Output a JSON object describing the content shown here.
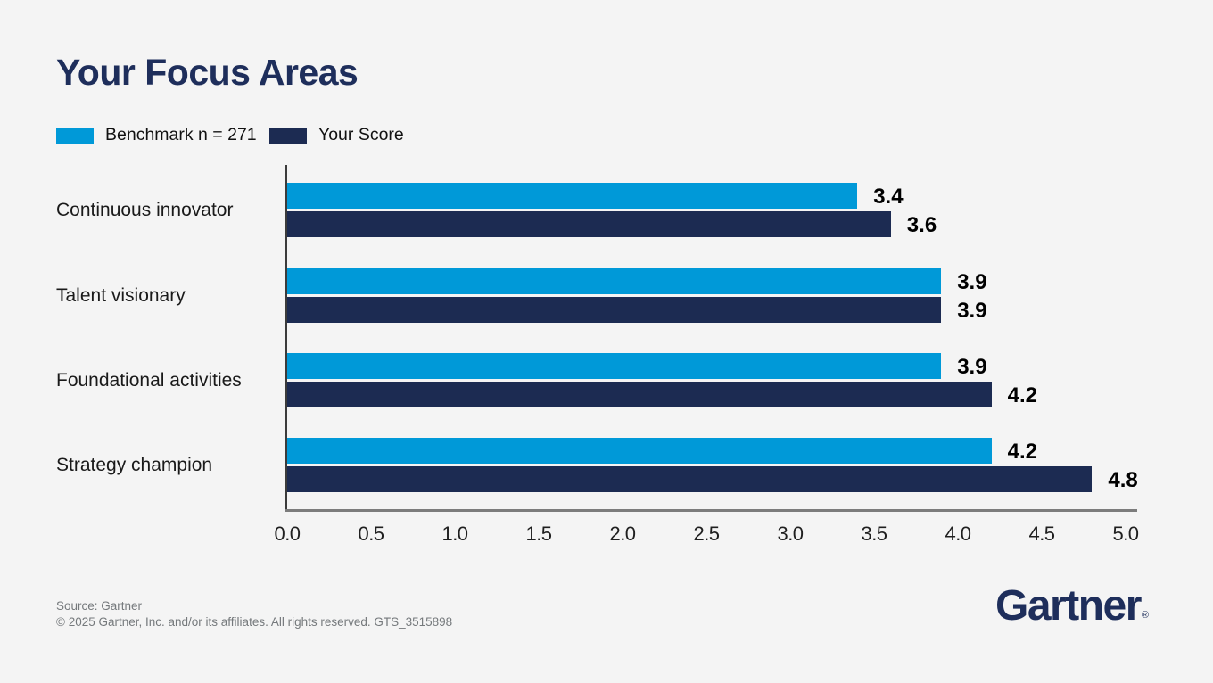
{
  "page": {
    "background_color": "#f4f4f4",
    "accent_blue": "#0099d8",
    "accent_navy": "#1c2b52",
    "title_navy": "#1e2e5b"
  },
  "header": {
    "title": "Your Focus Areas"
  },
  "legend": [
    {
      "label": "Benchmark n = 271",
      "color": "#0099d8"
    },
    {
      "label": "Your Score",
      "color": "#1c2b52"
    }
  ],
  "chart_data": {
    "type": "bar",
    "orientation": "horizontal",
    "title": "Your Focus Areas",
    "categories": [
      "Continuous innovator",
      "Talent visionary",
      "Foundational activities",
      "Strategy champion"
    ],
    "series": [
      {
        "name": "Benchmark n = 271",
        "color": "#0099d8",
        "values": [
          3.4,
          3.9,
          3.9,
          4.2
        ]
      },
      {
        "name": "Your Score",
        "color": "#1c2b52",
        "values": [
          3.6,
          3.9,
          4.2,
          4.8
        ]
      }
    ],
    "xlabel": "",
    "ylabel": "",
    "xlim": [
      0.0,
      5.0
    ],
    "xticks": [
      "0.0",
      "0.5",
      "1.0",
      "1.5",
      "2.0",
      "2.5",
      "3.0",
      "3.5",
      "4.0",
      "4.5",
      "5.0"
    ],
    "value_labels": true,
    "grid": false,
    "legend_position": "top-left"
  },
  "footer": {
    "source_line1": "Source: Gartner",
    "source_line2": "© 2025 Gartner, Inc. and/or its affiliates. All rights reserved. GTS_3515898",
    "logo_text": "Gartner",
    "logo_registered": "®"
  }
}
